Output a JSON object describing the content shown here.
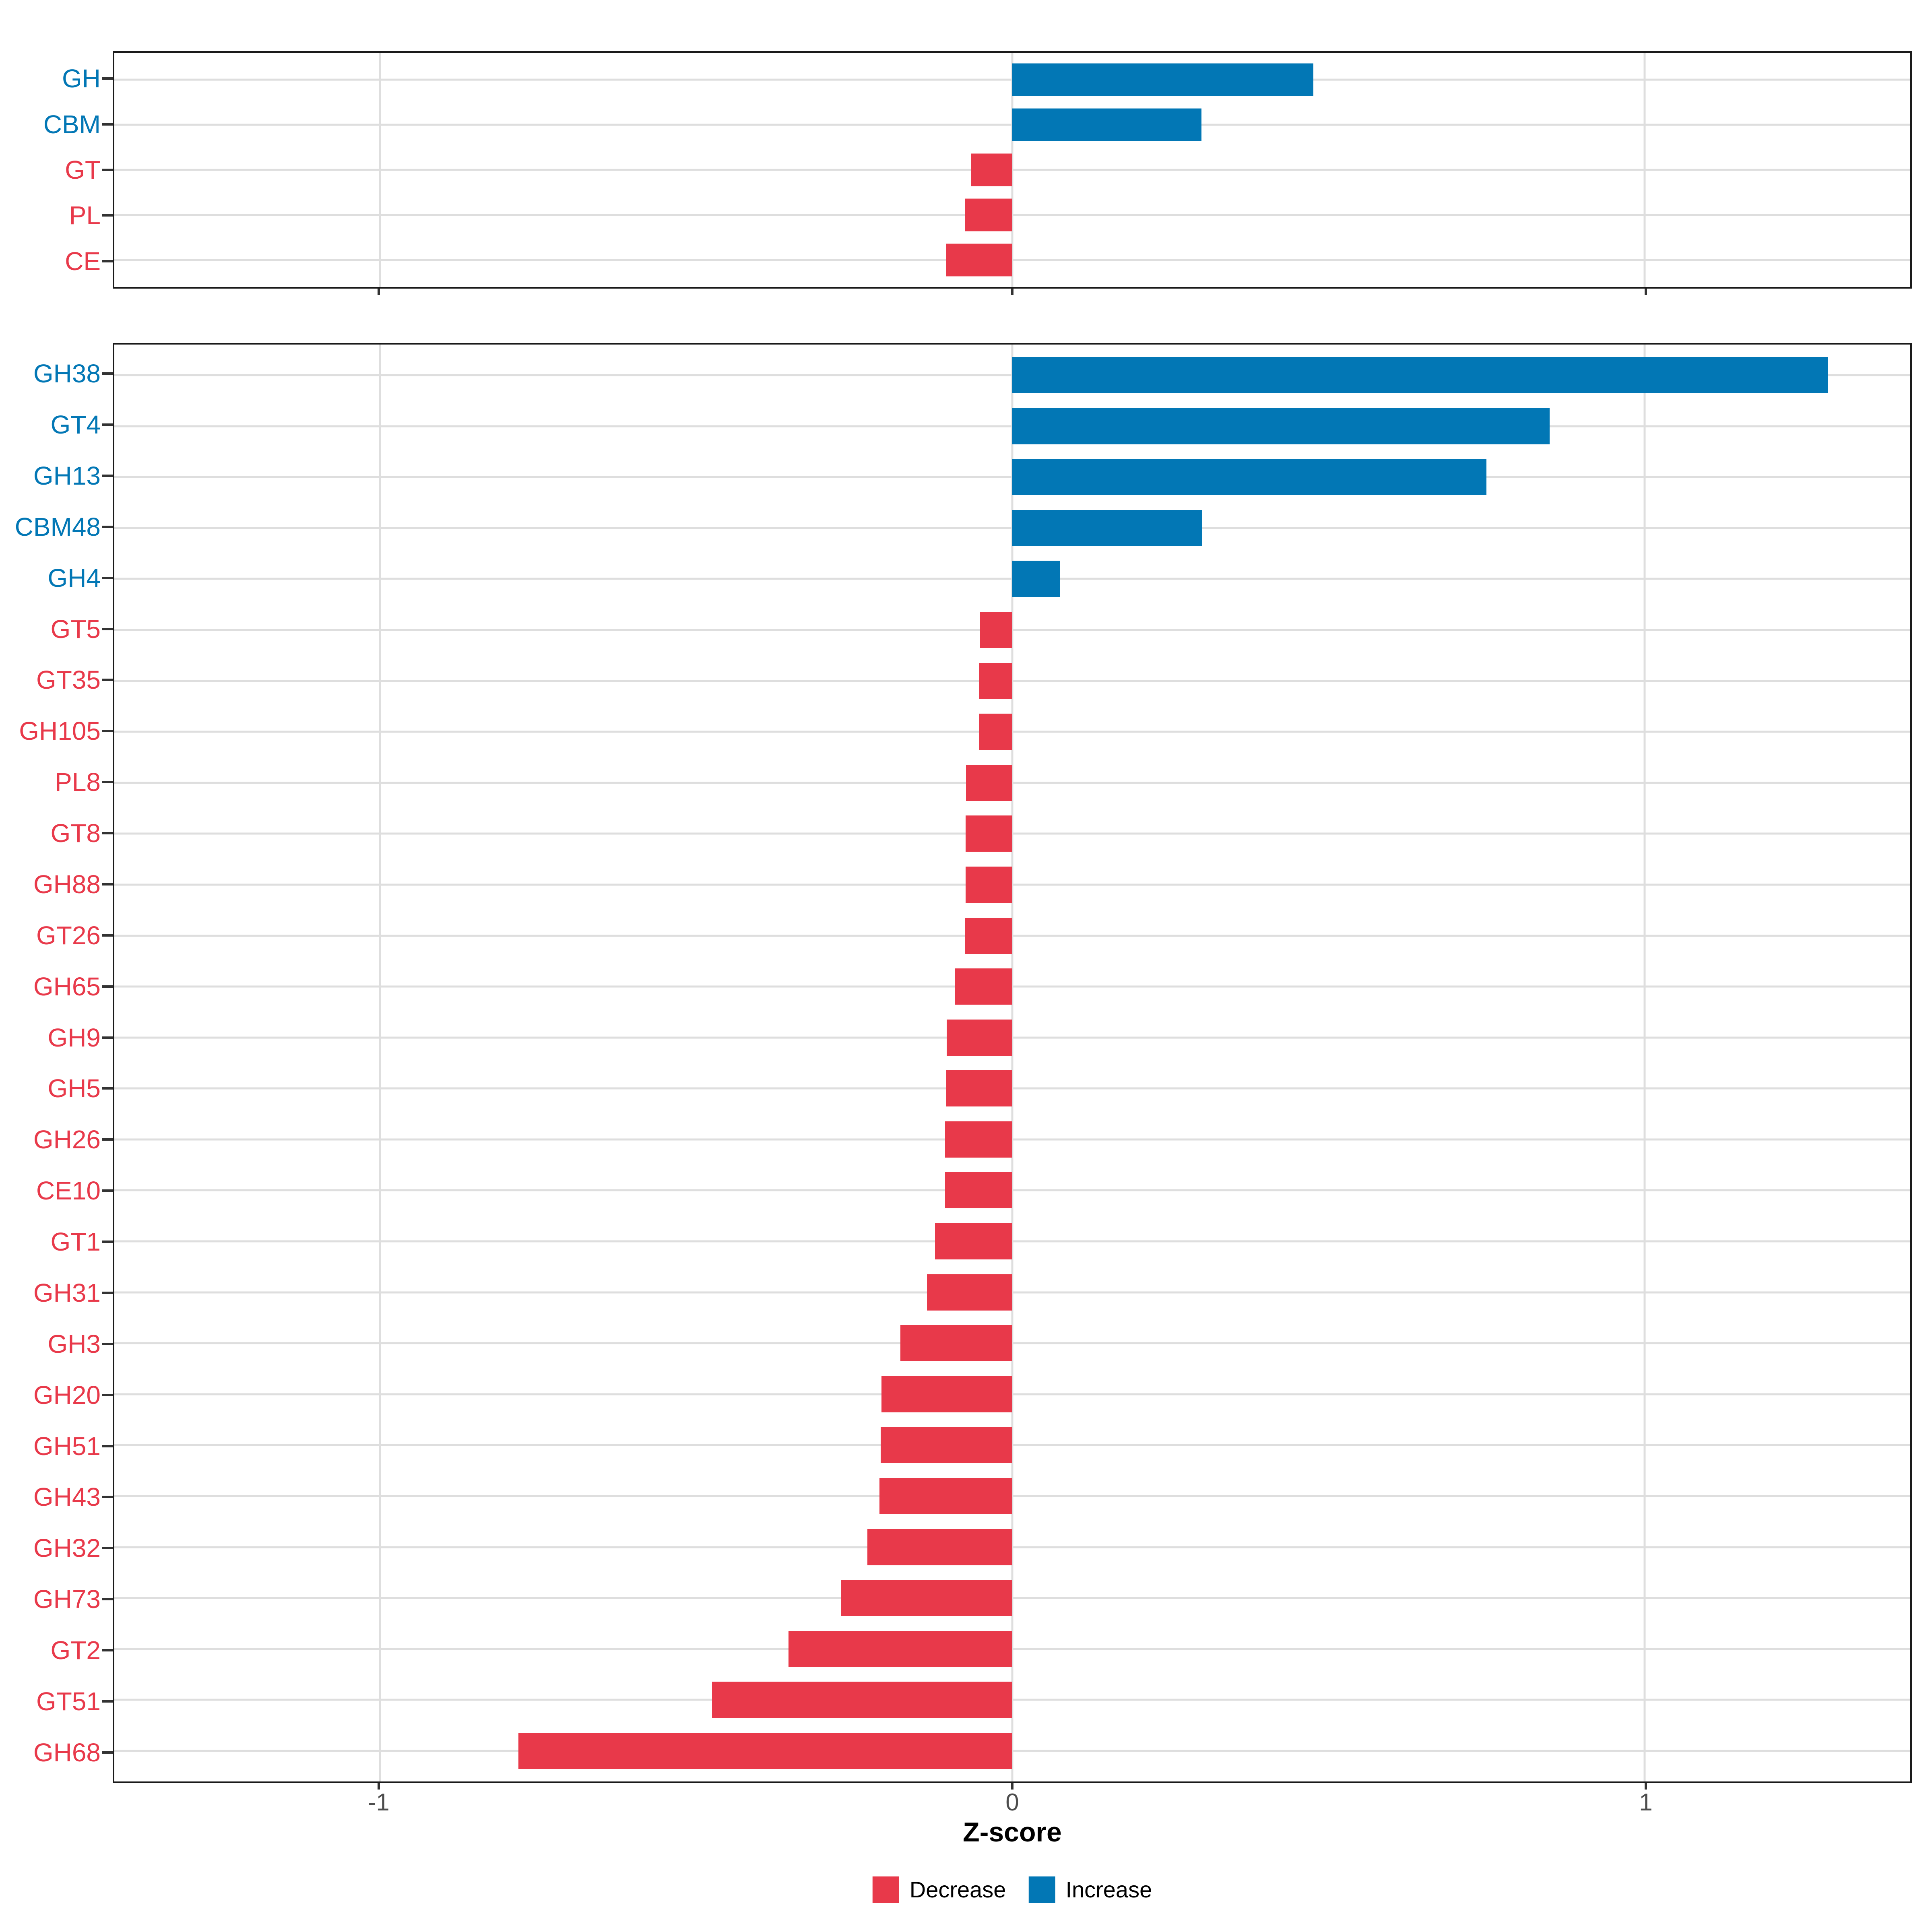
{
  "figure": {
    "background": "#ffffff"
  },
  "colors": {
    "increase": "#0277B5",
    "decrease": "#E8394A",
    "gridline": "#DEDEDE",
    "panel_border": "#1A1A1A",
    "tick_mark": "#333333",
    "axis_text": "#4D4D4D",
    "title_text": "#000000"
  },
  "axis": {
    "title": "Z-score",
    "tick_values": [
      -1,
      0,
      1
    ],
    "tick_labels": [
      "-1",
      "0",
      "1"
    ],
    "xlim": [
      -1.42,
      1.42
    ]
  },
  "legend": {
    "position": "bottom-center",
    "items": [
      {
        "label": "Decrease",
        "color": "#E8394A"
      },
      {
        "label": "Increase",
        "color": "#0277B5"
      }
    ]
  },
  "chart_data": [
    {
      "type": "bar",
      "orientation": "horizontal",
      "panel": "cazyme-class-summary",
      "title": "",
      "xlabel": "Z-score",
      "xlim": [
        -1.42,
        1.42
      ],
      "grid": true,
      "categories": [
        "GH",
        "CBM",
        "GT",
        "PL",
        "CE"
      ],
      "values": [
        0.476,
        0.299,
        -0.065,
        -0.075,
        -0.105
      ],
      "directions": [
        "Increase",
        "Increase",
        "Decrease",
        "Decrease",
        "Decrease"
      ]
    },
    {
      "type": "bar",
      "orientation": "horizontal",
      "panel": "cazyme-family-detail",
      "title": "",
      "xlabel": "Z-score",
      "xlim": [
        -1.42,
        1.42
      ],
      "grid": true,
      "categories": [
        "GH38",
        "GT4",
        "GH13",
        "CBM48",
        "GH4",
        "GT5",
        "GT35",
        "GH105",
        "PL8",
        "GT8",
        "GH88",
        "GT26",
        "GH65",
        "GH9",
        "GH5",
        "GH26",
        "CE10",
        "GT1",
        "GH31",
        "GH3",
        "GH20",
        "GH51",
        "GH43",
        "GH32",
        "GH73",
        "GT2",
        "GT51",
        "GH68"
      ],
      "values": [
        1.29,
        0.85,
        0.75,
        0.3,
        0.075,
        -0.051,
        -0.052,
        -0.053,
        -0.073,
        -0.074,
        -0.074,
        -0.075,
        -0.091,
        -0.104,
        -0.105,
        -0.106,
        -0.106,
        -0.122,
        -0.135,
        -0.177,
        -0.207,
        -0.208,
        -0.21,
        -0.229,
        -0.271,
        -0.354,
        -0.475,
        -0.781
      ],
      "directions": [
        "Increase",
        "Increase",
        "Increase",
        "Increase",
        "Increase",
        "Decrease",
        "Decrease",
        "Decrease",
        "Decrease",
        "Decrease",
        "Decrease",
        "Decrease",
        "Decrease",
        "Decrease",
        "Decrease",
        "Decrease",
        "Decrease",
        "Decrease",
        "Decrease",
        "Decrease",
        "Decrease",
        "Decrease",
        "Decrease",
        "Decrease",
        "Decrease",
        "Decrease",
        "Decrease",
        "Decrease"
      ]
    }
  ]
}
